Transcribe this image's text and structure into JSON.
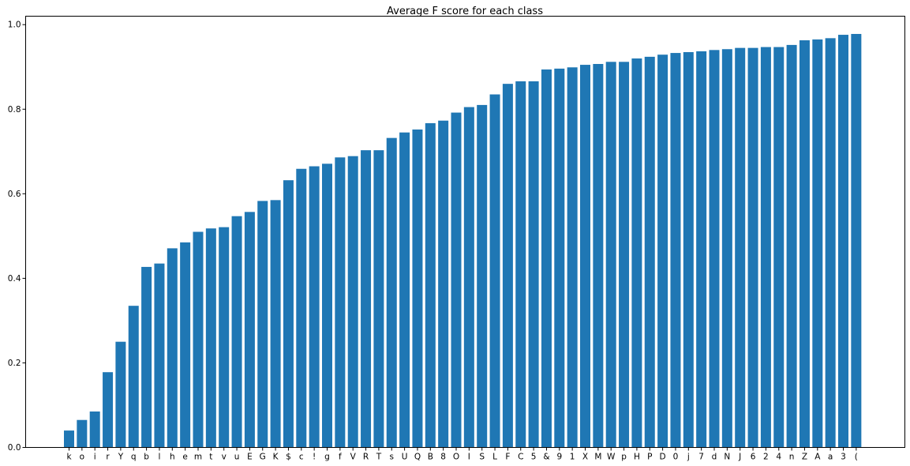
{
  "chart_data": {
    "type": "bar",
    "title": "Average F score for each class",
    "xlabel": "",
    "ylabel": "",
    "ylim": [
      0,
      1.02
    ],
    "yticks": [
      "0.0",
      "0.2",
      "0.4",
      "0.6",
      "0.8",
      "1.0"
    ],
    "ytick_values": [
      0,
      0.2,
      0.4,
      0.6,
      0.8,
      1.0
    ],
    "grid": false,
    "bar_color": "#1f77b4",
    "categories": [
      "k",
      "o",
      "i",
      "r",
      "Y",
      "q",
      "b",
      "l",
      "h",
      "e",
      "m",
      "t",
      "v",
      "u",
      "E",
      "G",
      "K",
      "$",
      "c",
      "!",
      "g",
      "f",
      "V",
      "R",
      "T",
      "s",
      "U",
      "Q",
      "B",
      "8",
      "O",
      "I",
      "S",
      "L",
      "F",
      "C",
      "5",
      "&",
      "9",
      "1",
      "X",
      "M",
      "W",
      "p",
      "H",
      "P",
      "D",
      "0",
      "j",
      "7",
      "d",
      "N",
      "J",
      "6",
      "2",
      "4",
      "n",
      "Z",
      "A",
      "a",
      "3",
      "("
    ],
    "values": [
      0.04,
      0.065,
      0.085,
      0.178,
      0.25,
      0.335,
      0.427,
      0.435,
      0.471,
      0.485,
      0.51,
      0.518,
      0.521,
      0.547,
      0.557,
      0.583,
      0.585,
      0.632,
      0.659,
      0.665,
      0.671,
      0.686,
      0.689,
      0.703,
      0.703,
      0.732,
      0.745,
      0.752,
      0.767,
      0.773,
      0.792,
      0.805,
      0.81,
      0.835,
      0.86,
      0.866,
      0.866,
      0.894,
      0.896,
      0.899,
      0.905,
      0.907,
      0.912,
      0.912,
      0.92,
      0.924,
      0.929,
      0.933,
      0.935,
      0.937,
      0.94,
      0.942,
      0.945,
      0.945,
      0.947,
      0.947,
      0.952,
      0.963,
      0.965,
      0.968,
      0.976,
      0.978
    ]
  }
}
